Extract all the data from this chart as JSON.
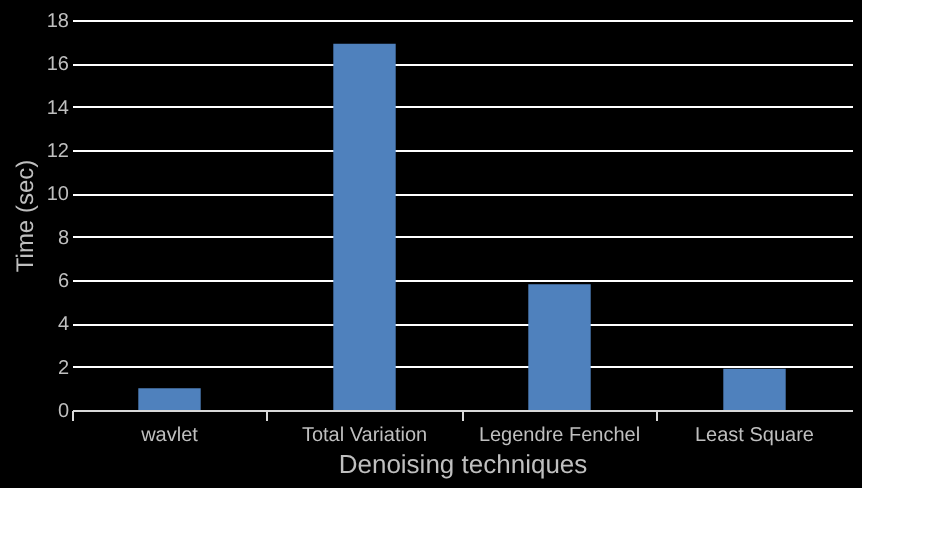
{
  "chart_data": {
    "type": "bar",
    "xlabel": "Denoising techniques",
    "ylabel": "Time (sec)",
    "categories": [
      "wavlet",
      "Total Variation",
      "Legendre Fenchel",
      "Least Square"
    ],
    "values": [
      1.0,
      16.9,
      5.8,
      1.9
    ],
    "color": "#4f81bd",
    "ylim": [
      0,
      18
    ],
    "yticks": [
      0,
      2,
      4,
      6,
      8,
      10,
      12,
      14,
      16,
      18
    ],
    "grid": "y"
  }
}
